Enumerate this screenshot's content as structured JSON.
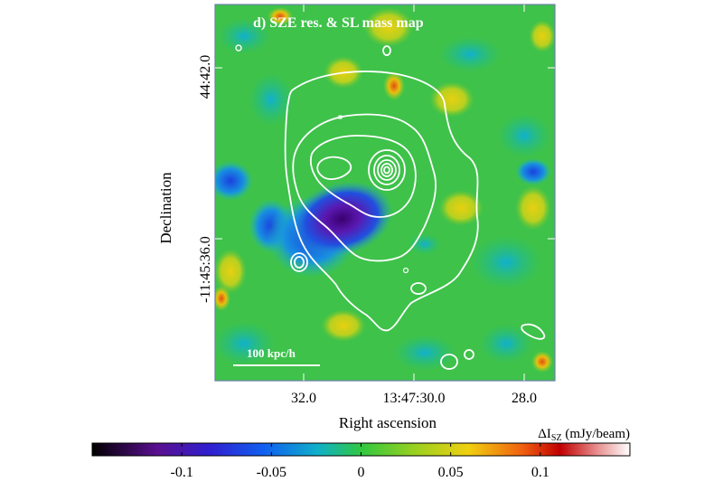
{
  "panel": {
    "title": "d) SZE res. & SL mass map",
    "scale_bar_label": "100 kpc/h"
  },
  "axes": {
    "xlabel": "Right ascension",
    "ylabel": "Declination",
    "x_ticks": [
      "32.0",
      "13:47:30.0",
      "28.0"
    ],
    "y_ticks": [
      "44:42.0",
      "-11:45:36.0"
    ]
  },
  "colorbar": {
    "label_prefix": "ΔI",
    "label_sub": "SZ",
    "label_unit": " (mJy/beam)",
    "ticks": [
      "-0.1",
      "-0.05",
      "0",
      "0.05",
      "0.1"
    ],
    "tick_values": [
      -0.1,
      -0.05,
      0,
      0.05,
      0.1
    ],
    "min": -0.15,
    "max": 0.15
  },
  "colors": {
    "map_background": "#3ec24a",
    "contour": "#ffffff",
    "decrement_core": "#4a0a9a",
    "frame": "#6a7fa8"
  }
}
